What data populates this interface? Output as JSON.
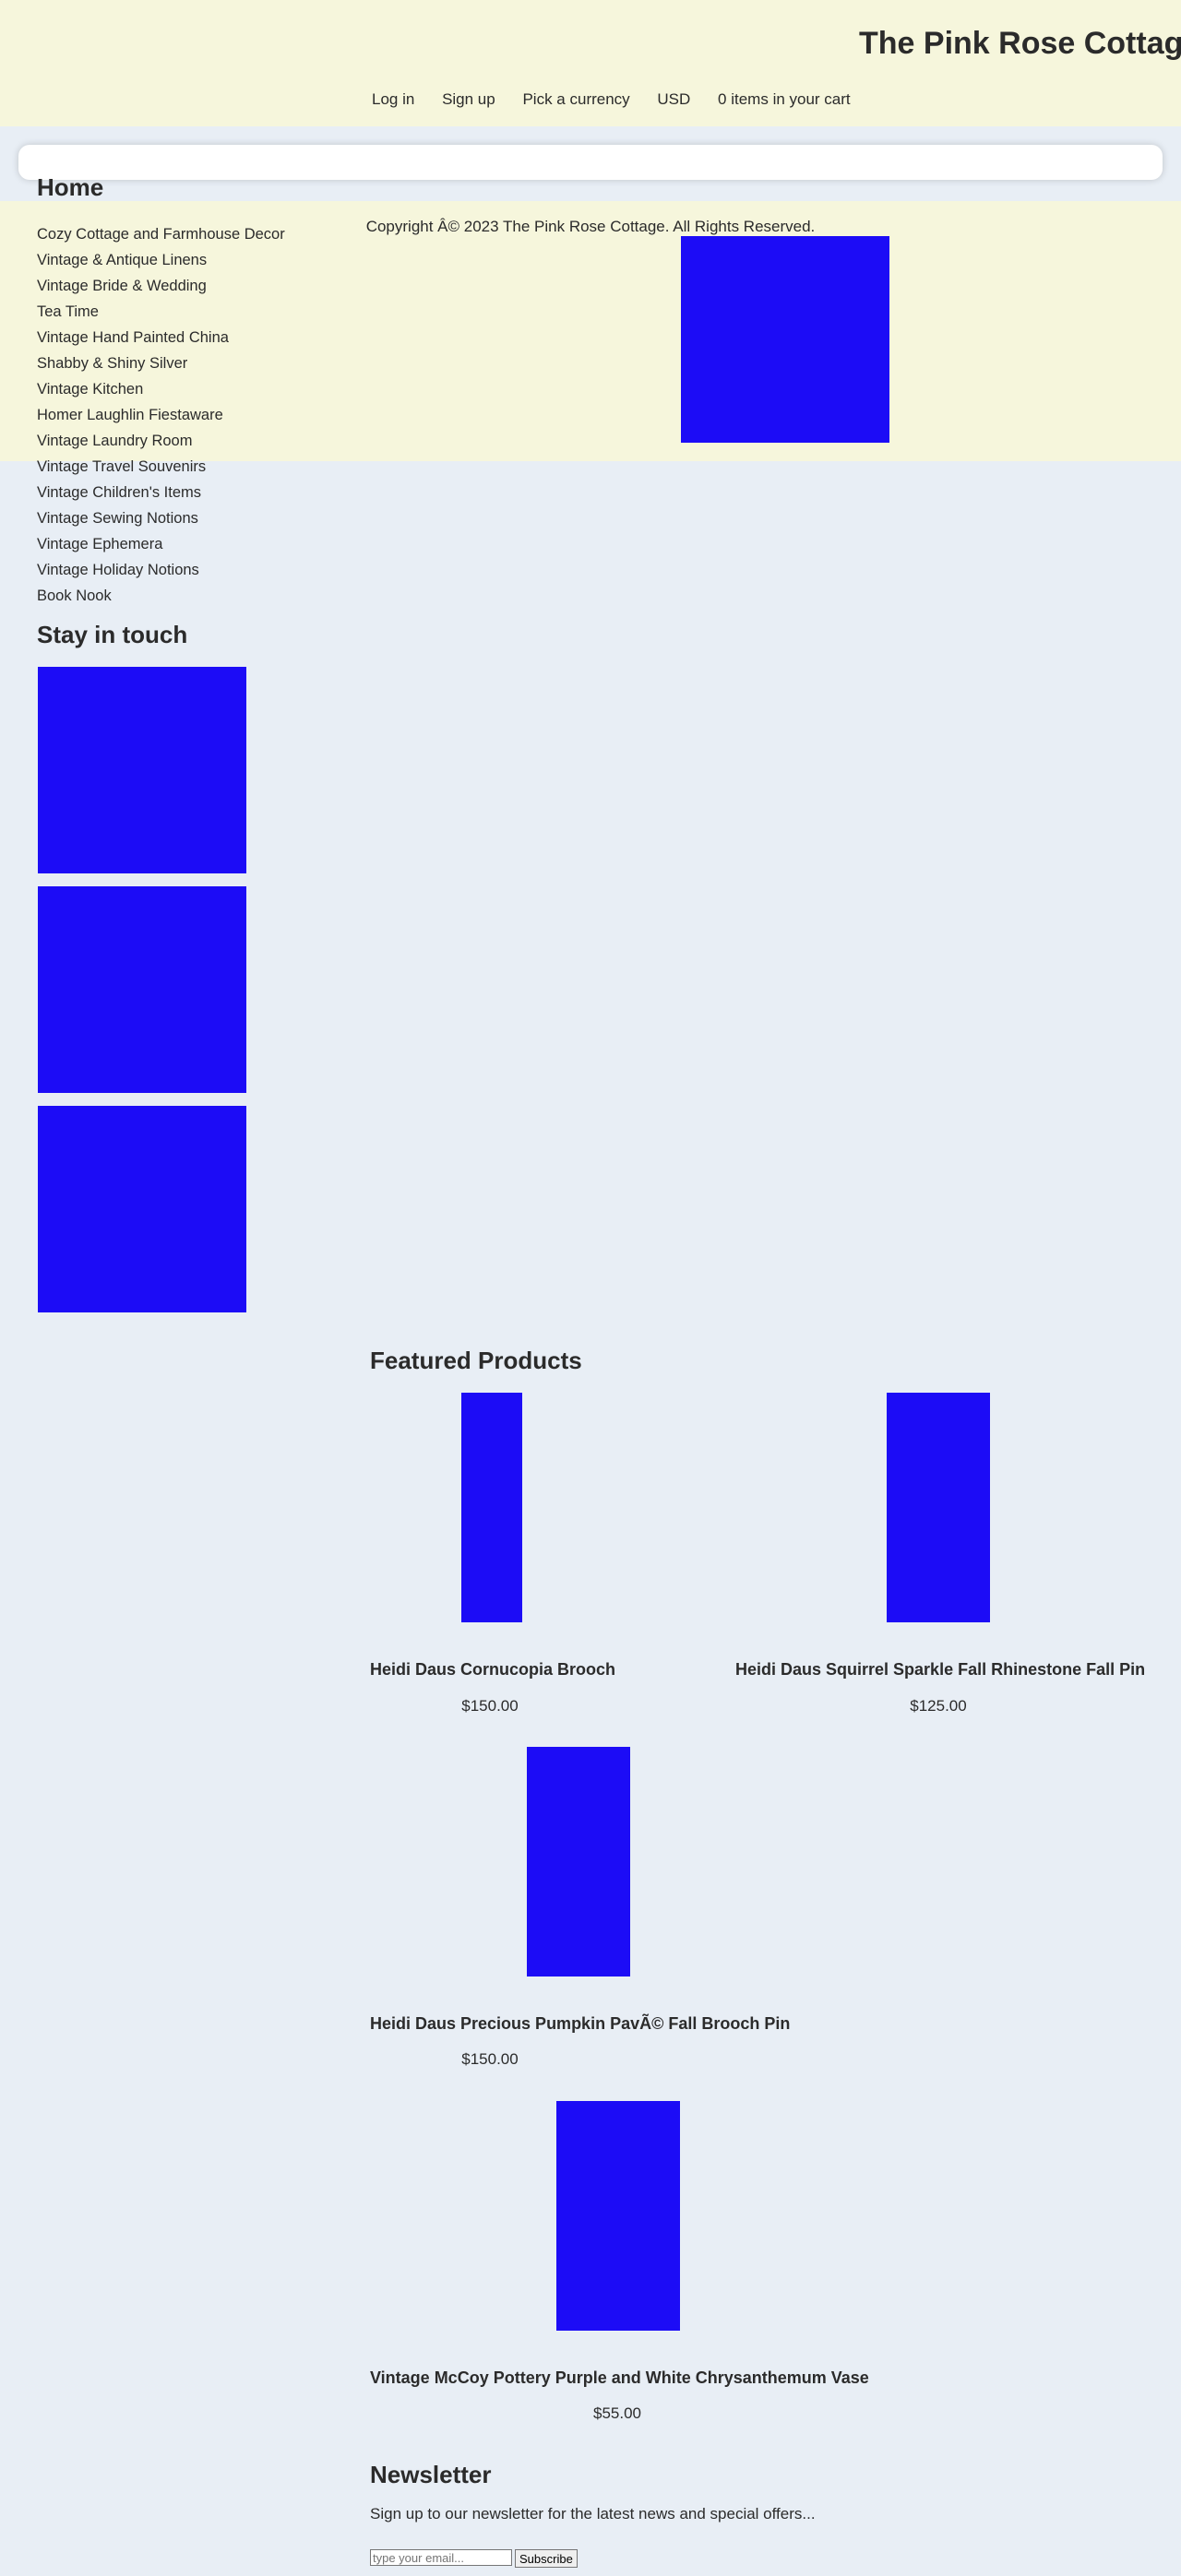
{
  "header": {
    "title": "The Pink Rose Cottage",
    "nav": [
      "Log in",
      "Sign up",
      "Pick a currency",
      "USD",
      "0 items in your cart"
    ]
  },
  "footer": {
    "copyright": "Copyright Â© 2023 The Pink Rose Cottage. All Rights Reserved."
  },
  "sidebar": {
    "home_heading": "Home",
    "categories": [
      "Cozy Cottage and Farmhouse Decor",
      "Vintage & Antique Linens",
      "Vintage Bride & Wedding",
      "Tea Time",
      "Vintage Hand Painted China",
      "Shabby & Shiny Silver",
      "Vintage Kitchen",
      "Homer Laughlin Fiestaware",
      "Vintage Laundry Room",
      "Vintage Travel Souvenirs",
      "Vintage Children's Items",
      "Vintage Sewing Notions",
      "Vintage Ephemera",
      "Vintage Holiday Notions",
      "Book Nook"
    ],
    "stay_heading": "Stay in touch"
  },
  "featured": {
    "heading": "Featured Products",
    "products": [
      {
        "title": "Heidi Daus Cornucopia Brooch",
        "price": "$150.00"
      },
      {
        "title": "Heidi Daus Squirrel Sparkle Fall Rhinestone Fall Pin",
        "price": "$125.00"
      },
      {
        "title": "Heidi Daus Precious Pumpkin PavÃ© Fall Brooch Pin",
        "price": "$150.00"
      },
      {
        "title": "Vintage McCoy Pottery Purple and White Chrysanthemum Vase",
        "price": "$55.00"
      }
    ]
  },
  "newsletter": {
    "heading": "Newsletter",
    "text": "Sign up to our newsletter for the latest news and special offers...",
    "placeholder": "type your email...",
    "button": "Subscribe"
  },
  "colors": {
    "header_bg": "#f6f6dc",
    "page_bg": "#e8eef5",
    "image_placeholder": "#1c0cf6"
  }
}
